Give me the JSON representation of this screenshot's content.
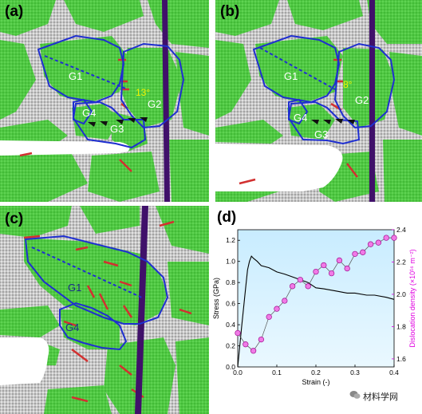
{
  "panels": {
    "a": {
      "label": "(a)",
      "grains": [
        "G1",
        "G2",
        "G3",
        "G4"
      ],
      "angle": "13°"
    },
    "b": {
      "label": "(b)",
      "grains": [
        "G1",
        "G2",
        "G3",
        "G4"
      ],
      "angle": "8°"
    },
    "c": {
      "label": "(c)",
      "grains": [
        "G1",
        "G4"
      ]
    },
    "d": {
      "label": "(d)"
    }
  },
  "colors": {
    "grain": "#49c83c",
    "boundary": "#c8c8c8",
    "twin": "#40106a",
    "outline": "#1f2fd0",
    "trace": "#1f2fd0",
    "defect": "#d23030",
    "plot_bg_top": "#c8ecff",
    "plot_bg_bottom": "#e8f7ff",
    "stress": "#000000",
    "density": "#e000e0"
  },
  "chart_data": {
    "type": "line",
    "xlabel": "Strain (-)",
    "ylabel": "Stress (GPa)",
    "y2label": "Dislocation density (×10¹⁶ m⁻²)",
    "xlim": [
      0.0,
      0.4
    ],
    "ylim": [
      0.0,
      1.3
    ],
    "y2lim": [
      1.55,
      2.4
    ],
    "x_ticks": [
      "0.0",
      "0.1",
      "0.2",
      "0.3",
      "0.4"
    ],
    "y_ticks": [
      "0.0",
      "0.2",
      "0.4",
      "0.6",
      "0.8",
      "1.0",
      "1.2"
    ],
    "y2_ticks": [
      "1.6",
      "1.8",
      "2.0",
      "2.2",
      "2.4"
    ],
    "series": [
      {
        "axis": "left",
        "x": [
          0.0,
          0.01,
          0.02,
          0.025,
          0.03,
          0.035,
          0.04,
          0.05,
          0.06,
          0.08,
          0.1,
          0.12,
          0.15,
          0.18,
          0.2,
          0.22,
          0.25,
          0.28,
          0.3,
          0.33,
          0.35,
          0.38,
          0.4
        ],
        "values": [
          0.0,
          0.38,
          0.74,
          0.92,
          1.0,
          1.05,
          1.03,
          1.0,
          0.96,
          0.94,
          0.9,
          0.88,
          0.84,
          0.8,
          0.75,
          0.74,
          0.72,
          0.7,
          0.7,
          0.68,
          0.68,
          0.66,
          0.64
        ]
      },
      {
        "axis": "right",
        "x": [
          0.0,
          0.02,
          0.04,
          0.06,
          0.08,
          0.1,
          0.12,
          0.14,
          0.16,
          0.18,
          0.2,
          0.22,
          0.24,
          0.26,
          0.28,
          0.3,
          0.32,
          0.34,
          0.36,
          0.38,
          0.4
        ],
        "values": [
          1.76,
          1.69,
          1.65,
          1.72,
          1.86,
          1.91,
          1.96,
          2.05,
          2.09,
          2.05,
          2.14,
          2.18,
          2.13,
          2.21,
          2.16,
          2.25,
          2.26,
          2.31,
          2.32,
          2.35,
          2.35
        ]
      }
    ]
  },
  "watermark": "材料学网"
}
